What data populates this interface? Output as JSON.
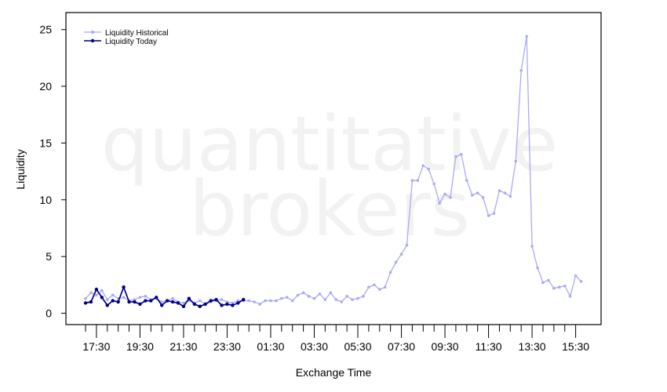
{
  "watermark": {
    "line1": "quantitative",
    "line2": "brokers"
  },
  "colors": {
    "historical": "#aaaaf5",
    "today": "#00008b",
    "axis": "#000000",
    "watermark": "#f2f2f2"
  },
  "chart_data": {
    "type": "line",
    "title": "",
    "xlabel": "Exchange Time",
    "ylabel": "Liquidity",
    "ylim": [
      -1,
      26.5
    ],
    "yticks": [
      0,
      5,
      10,
      15,
      20,
      25
    ],
    "x_step_minutes": 15,
    "x_start": "17:00",
    "xticks": [
      {
        "label": "17:30",
        "index": 2
      },
      {
        "label": "19:30",
        "index": 10
      },
      {
        "label": "21:30",
        "index": 18
      },
      {
        "label": "23:30",
        "index": 26
      },
      {
        "label": "01:30",
        "index": 34
      },
      {
        "label": "03:30",
        "index": 42
      },
      {
        "label": "05:30",
        "index": 50
      },
      {
        "label": "07:30",
        "index": 58
      },
      {
        "label": "09:30",
        "index": 66
      },
      {
        "label": "11:30",
        "index": 74
      },
      {
        "label": "13:30",
        "index": 82
      },
      {
        "label": "15:30",
        "index": 90
      }
    ],
    "legend_position": "top-left",
    "grid": false,
    "series": [
      {
        "name": "Liquidity Historical",
        "color": "#aaaaf5",
        "values": [
          1.3,
          1.8,
          1.6,
          2.0,
          1.2,
          1.6,
          1.3,
          1.4,
          1.1,
          1.2,
          1.4,
          1.5,
          1.2,
          1.3,
          1.0,
          1.1,
          1.3,
          1.0,
          0.9,
          1.1,
          0.9,
          1.1,
          0.8,
          1.0,
          1.1,
          1.2,
          1.0,
          0.9,
          1.1,
          1.1,
          1.1,
          1.0,
          0.8,
          1.1,
          1.1,
          1.1,
          1.3,
          1.4,
          1.1,
          1.6,
          1.8,
          1.5,
          1.3,
          1.7,
          1.2,
          1.8,
          1.2,
          1.0,
          1.5,
          1.2,
          1.3,
          1.5,
          2.3,
          2.5,
          2.1,
          2.3,
          3.6,
          4.5,
          5.2,
          6.0,
          11.7,
          11.7,
          13.0,
          12.7,
          11.4,
          9.7,
          10.5,
          10.2,
          13.8,
          14.0,
          11.7,
          10.4,
          10.6,
          10.2,
          8.6,
          8.8,
          10.8,
          10.6,
          10.3,
          13.4,
          21.4,
          24.4,
          5.9,
          4.0,
          2.7,
          2.9,
          2.2,
          2.3,
          2.4,
          1.5,
          3.3,
          2.8
        ]
      },
      {
        "name": "Liquidity Today",
        "color": "#00008b",
        "values": [
          0.9,
          1.0,
          2.1,
          1.4,
          0.7,
          1.1,
          1.0,
          2.3,
          1.0,
          1.0,
          0.8,
          1.1,
          1.1,
          1.4,
          0.7,
          1.1,
          1.0,
          0.9,
          0.6,
          1.3,
          0.8,
          0.6,
          0.8,
          1.1,
          1.2,
          0.7,
          0.8,
          0.7,
          0.9,
          1.2
        ]
      }
    ]
  }
}
